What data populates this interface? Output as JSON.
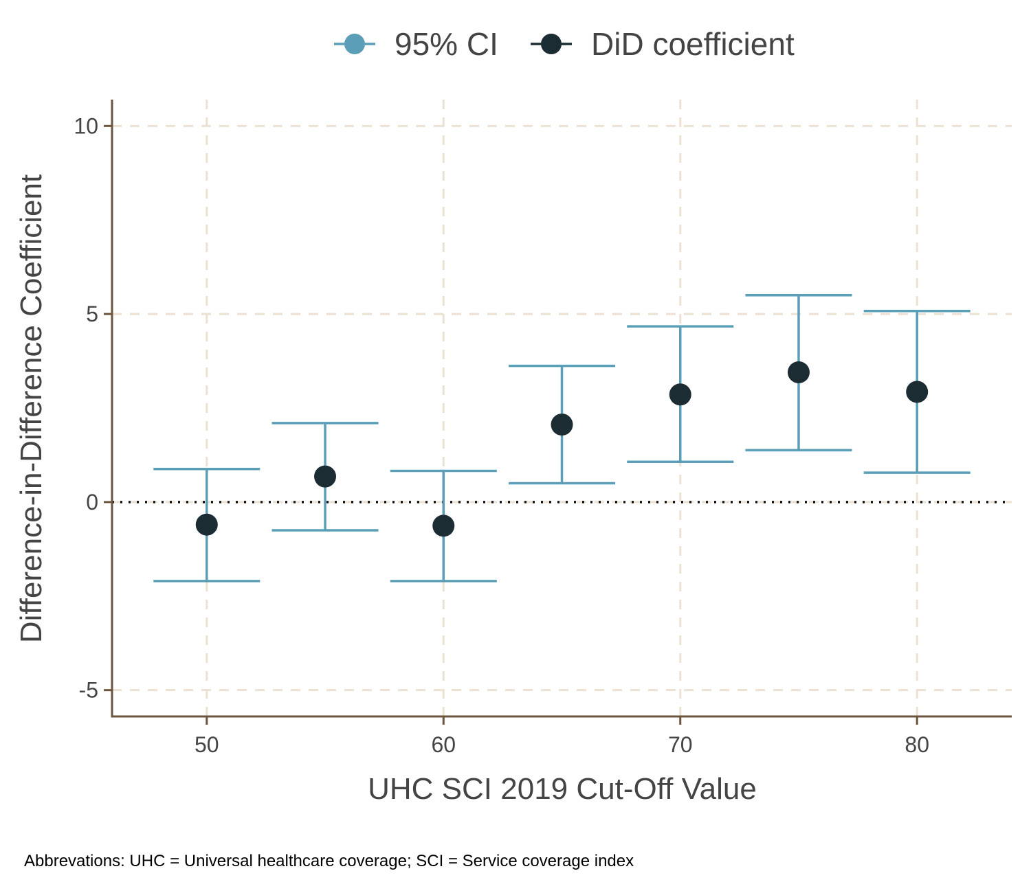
{
  "chart_data": {
    "type": "scatter",
    "xlabel": "UHC SCI 2019 Cut-Off Value",
    "ylabel": "Difference-in-Difference Coefficient",
    "x_ticks": [
      50,
      60,
      70,
      80
    ],
    "y_ticks": [
      -5,
      0,
      5,
      10
    ],
    "xlim": [
      46,
      84
    ],
    "ylim": [
      -5.7,
      10.7
    ],
    "grid": true,
    "legend_position": "top",
    "reference_line_y": 0,
    "series": [
      {
        "name": "DiD coefficient",
        "x": [
          50,
          55,
          60,
          65,
          70,
          75,
          80
        ],
        "y": [
          -0.6,
          0.68,
          -0.63,
          2.06,
          2.86,
          3.45,
          2.93
        ]
      }
    ],
    "errorbars": {
      "name": "95% CI",
      "x": [
        50,
        55,
        60,
        65,
        70,
        75,
        80
      ],
      "lower": [
        -2.1,
        -0.75,
        -2.1,
        0.5,
        1.07,
        1.38,
        0.78
      ],
      "upper": [
        0.88,
        2.1,
        0.83,
        3.62,
        4.67,
        5.5,
        5.08
      ]
    }
  },
  "legend": [
    {
      "label": "95% CI",
      "color": "#5a9fb7"
    },
    {
      "label": "DiD coefficient",
      "color": "#1c2c33"
    }
  ],
  "colors": {
    "ci": "#5a9fb7",
    "point": "#1c2c33",
    "axis": "#6b563d",
    "grid": "#ede1d3",
    "reference_line": "#111111"
  },
  "caption": "Abbrevations: UHC = Universal healthcare coverage; SCI = Service coverage index"
}
